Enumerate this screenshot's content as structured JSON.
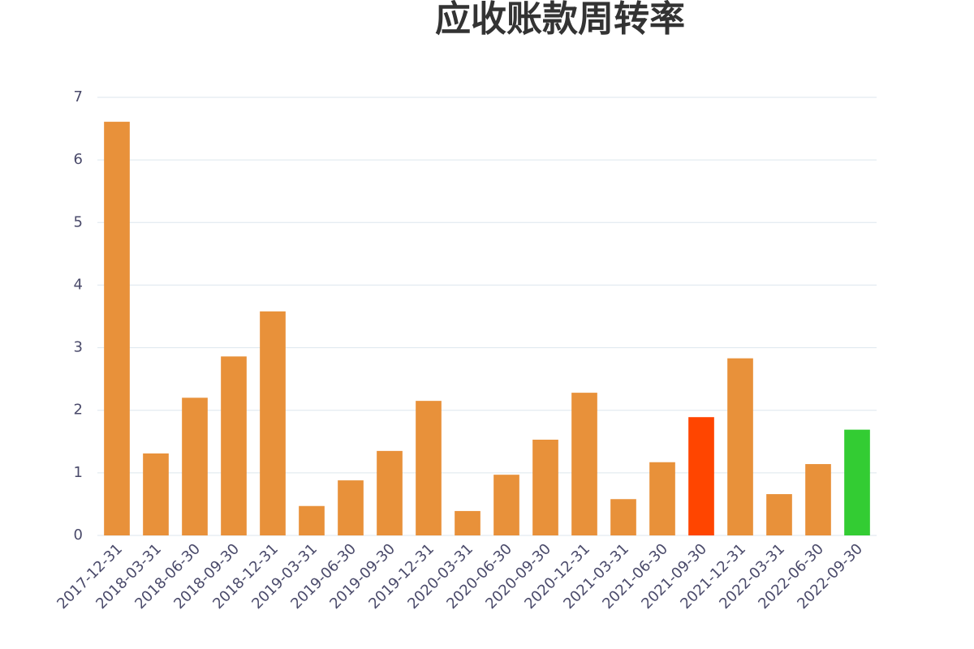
{
  "chart_data": {
    "type": "bar",
    "title": "应收账款周转率",
    "categories": [
      "2017-12-31",
      "2018-03-31",
      "2018-06-30",
      "2018-09-30",
      "2018-12-31",
      "2019-03-31",
      "2019-06-30",
      "2019-09-30",
      "2019-12-31",
      "2020-03-31",
      "2020-06-30",
      "2020-09-30",
      "2020-12-31",
      "2021-03-31",
      "2021-06-30",
      "2021-09-30",
      "2021-12-31",
      "2022-03-31",
      "2022-06-30",
      "2022-09-30"
    ],
    "values": [
      6.61,
      1.31,
      2.2,
      2.86,
      3.58,
      0.47,
      0.88,
      1.35,
      2.15,
      0.39,
      0.97,
      1.53,
      2.28,
      0.58,
      1.17,
      1.89,
      2.83,
      0.66,
      1.14,
      1.69
    ],
    "colors": [
      "#e8913a",
      "#e8913a",
      "#e8913a",
      "#e8913a",
      "#e8913a",
      "#e8913a",
      "#e8913a",
      "#e8913a",
      "#e8913a",
      "#e8913a",
      "#e8913a",
      "#e8913a",
      "#e8913a",
      "#e8913a",
      "#e8913a",
      "#ff4500",
      "#e8913a",
      "#e8913a",
      "#e8913a",
      "#33cc33"
    ],
    "ylim": [
      0,
      7
    ],
    "yticks": [
      0,
      1,
      2,
      3,
      4,
      5,
      6,
      7
    ],
    "grid": true
  }
}
